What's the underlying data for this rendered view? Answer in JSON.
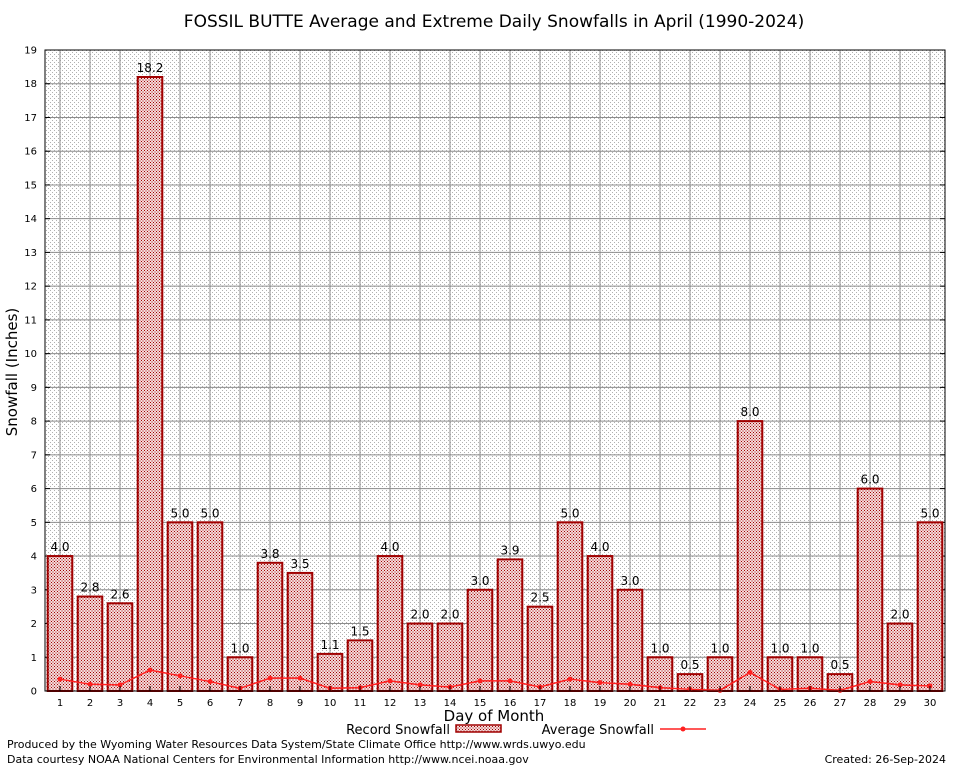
{
  "chart_data": {
    "type": "bar",
    "title": "FOSSIL BUTTE Average and Extreme Daily Snowfalls in April (1990-2024)",
    "xlabel": "Day of Month",
    "ylabel": "Snowfall (Inches)",
    "ylim": [
      0,
      19
    ],
    "yticks": [
      0,
      1,
      2,
      3,
      4,
      5,
      6,
      7,
      8,
      9,
      10,
      11,
      12,
      13,
      14,
      15,
      16,
      17,
      18,
      19
    ],
    "grid": true,
    "legend_placement": "bottom",
    "categories": [
      "1",
      "2",
      "3",
      "4",
      "5",
      "6",
      "7",
      "8",
      "9",
      "10",
      "11",
      "12",
      "13",
      "14",
      "15",
      "16",
      "17",
      "18",
      "19",
      "20",
      "21",
      "22",
      "23",
      "24",
      "25",
      "26",
      "27",
      "28",
      "29",
      "30"
    ],
    "series": [
      {
        "name": "Record Snowfall",
        "kind": "bar",
        "color": "#a00000",
        "values": [
          4.0,
          2.8,
          2.6,
          18.2,
          5.0,
          5.0,
          1.0,
          3.8,
          3.5,
          1.1,
          1.5,
          4.0,
          2.0,
          2.0,
          3.0,
          3.9,
          2.5,
          5.0,
          4.0,
          3.0,
          1.0,
          0.5,
          1.0,
          8.0,
          1.0,
          1.0,
          0.5,
          6.0,
          2.0,
          5.0
        ],
        "labels": [
          "4.0",
          "2.8",
          "2.6",
          "18.2",
          "5.0",
          "5.0",
          "1.0",
          "3.8",
          "3.5",
          "1.1",
          "1.5",
          "4.0",
          "2.0",
          "2.0",
          "3.0",
          "3.9",
          "2.5",
          "5.0",
          "4.0",
          "3.0",
          "1.0",
          "0.5",
          "1.0",
          "8.0",
          "1.0",
          "1.0",
          "0.5",
          "6.0",
          "2.0",
          "5.0"
        ]
      },
      {
        "name": "Average Snowfall",
        "kind": "line",
        "color": "#ff2020",
        "values": [
          0.35,
          0.2,
          0.18,
          0.62,
          0.45,
          0.28,
          0.08,
          0.38,
          0.38,
          0.08,
          0.1,
          0.3,
          0.18,
          0.12,
          0.3,
          0.3,
          0.12,
          0.35,
          0.25,
          0.2,
          0.1,
          0.05,
          0.02,
          0.55,
          0.05,
          0.08,
          0.02,
          0.28,
          0.18,
          0.15
        ]
      }
    ]
  },
  "footer": {
    "produced_by": "Produced by the Wyoming Water Resources Data System/State Climate Office http://www.wrds.uwyo.edu",
    "data_courtesy": "Data courtesy NOAA National Centers for Environmental Information http://www.ncei.noaa.gov",
    "created": "Created: 26-Sep-2024"
  }
}
